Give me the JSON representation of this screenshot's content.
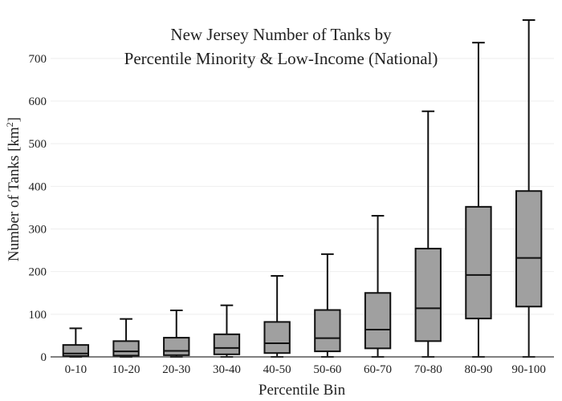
{
  "chart_data": {
    "type": "box",
    "title_lines": [
      "New Jersey Number of Tanks by",
      "Percentile Minority & Low-Income (National)"
    ],
    "xlabel": "Percentile Bin",
    "ylabel": "Number of Tanks",
    "ylabel_unit_base": "[km",
    "ylabel_unit_exp": "2",
    "ylabel_unit_close": "]",
    "ylim": [
      0,
      790
    ],
    "yticks": [
      0,
      100,
      200,
      300,
      400,
      500,
      600,
      700
    ],
    "grid": true,
    "box_color": "#a0a0a0",
    "categories": [
      "0-10",
      "10-20",
      "20-30",
      "30-40",
      "40-50",
      "50-60",
      "60-70",
      "70-80",
      "80-90",
      "90-100"
    ],
    "boxes": [
      {
        "min": 0,
        "q1": 2,
        "median": 8,
        "q3": 28,
        "max": 67
      },
      {
        "min": 0,
        "q1": 3,
        "median": 13,
        "q3": 37,
        "max": 89
      },
      {
        "min": 0,
        "q1": 4,
        "median": 14,
        "q3": 45,
        "max": 109
      },
      {
        "min": 0,
        "q1": 6,
        "median": 21,
        "q3": 53,
        "max": 121
      },
      {
        "min": 0,
        "q1": 9,
        "median": 32,
        "q3": 82,
        "max": 190
      },
      {
        "min": 0,
        "q1": 13,
        "median": 44,
        "q3": 110,
        "max": 241
      },
      {
        "min": 0,
        "q1": 20,
        "median": 64,
        "q3": 150,
        "max": 331
      },
      {
        "min": 0,
        "q1": 37,
        "median": 114,
        "q3": 254,
        "max": 576
      },
      {
        "min": 0,
        "q1": 90,
        "median": 192,
        "q3": 352,
        "max": 737
      },
      {
        "min": 0,
        "q1": 118,
        "median": 232,
        "q3": 389,
        "max": 790
      }
    ]
  }
}
